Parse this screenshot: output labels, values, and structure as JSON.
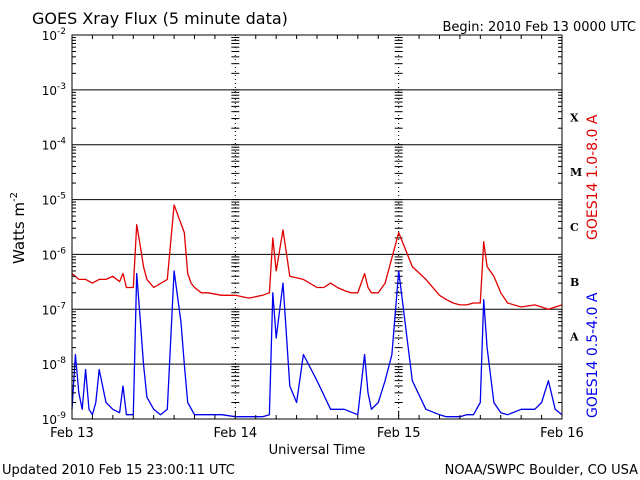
{
  "header": {
    "title": "GOES Xray Flux (5 minute data)",
    "begin": "Begin:  2010 Feb 13 0000 UTC"
  },
  "footer": {
    "updated": "Updated 2010 Feb 15 23:00:11 UTC",
    "credit": "NOAA/SWPC Boulder, CO USA"
  },
  "chart_data": {
    "type": "line",
    "title": "GOES Xray Flux (5 minute data)",
    "xlabel": "Universal Time",
    "ylabel": "Watts m",
    "ylabel_sup": "-2",
    "yscale": "log",
    "ylim": [
      1e-09,
      0.01
    ],
    "xlim": [
      "2010-02-13T00:00",
      "2010-02-16T00:00"
    ],
    "x_ticks": [
      "Feb 13",
      "Feb 14",
      "Feb 15",
      "Feb 16"
    ],
    "y_ticks": [
      {
        "base": "10",
        "exp": "-9"
      },
      {
        "base": "10",
        "exp": "-8"
      },
      {
        "base": "10",
        "exp": "-7"
      },
      {
        "base": "10",
        "exp": "-6"
      },
      {
        "base": "10",
        "exp": "-5"
      },
      {
        "base": "10",
        "exp": "-4"
      },
      {
        "base": "10",
        "exp": "-3"
      },
      {
        "base": "10",
        "exp": "-2"
      }
    ],
    "flare_classes": [
      {
        "label": "A",
        "flux": 3.16e-08
      },
      {
        "label": "B",
        "flux": 3.16e-07
      },
      {
        "label": "C",
        "flux": 3.16e-06
      },
      {
        "label": "M",
        "flux": 3.16e-05
      },
      {
        "label": "X",
        "flux": 0.000316
      }
    ],
    "grid": "horizontal at each decade, dashed verticals at day boundaries",
    "colors": {
      "long": "#e00000",
      "short": "#0000ee",
      "axis": "#000000"
    },
    "series": [
      {
        "name": "GOES14 1.0-8.0 A",
        "color": "#e00000",
        "x": [
          0,
          2,
          4,
          6,
          8,
          10,
          12,
          14,
          15,
          16,
          18,
          19,
          20,
          21,
          22,
          24,
          28,
          30,
          33,
          34,
          35,
          36,
          38,
          40,
          44,
          48,
          52,
          56,
          58,
          59,
          60,
          62,
          64,
          68,
          72,
          74,
          76,
          78,
          80,
          82,
          84,
          86,
          87,
          88,
          90,
          92,
          96,
          100,
          104,
          108,
          110,
          112,
          114,
          116,
          118,
          120,
          121,
          122,
          124,
          126,
          128,
          132,
          136,
          138,
          140,
          144
        ],
        "y": [
          4.5e-07,
          3.5e-07,
          3.5e-07,
          3e-07,
          3.5e-07,
          3.5e-07,
          4e-07,
          3.2e-07,
          4.5e-07,
          2.5e-07,
          2.5e-07,
          3.5e-06,
          1.5e-06,
          6e-07,
          3.5e-07,
          2.5e-07,
          3.5e-07,
          8e-06,
          2.5e-06,
          4.5e-07,
          3e-07,
          2.5e-07,
          2e-07,
          2e-07,
          1.8e-07,
          1.8e-07,
          1.6e-07,
          1.8e-07,
          2e-07,
          2e-06,
          5e-07,
          2.8e-06,
          4e-07,
          3.5e-07,
          2.5e-07,
          2.5e-07,
          3e-07,
          2.5e-07,
          2.2e-07,
          2e-07,
          2e-07,
          4.5e-07,
          2.5e-07,
          2e-07,
          2e-07,
          3e-07,
          2.5e-06,
          6e-07,
          3.5e-07,
          1.8e-07,
          1.5e-07,
          1.3e-07,
          1.2e-07,
          1.2e-07,
          1.3e-07,
          1.3e-07,
          1.7e-06,
          6e-07,
          4e-07,
          2e-07,
          1.3e-07,
          1.1e-07,
          1.2e-07,
          1.1e-07,
          1e-07,
          1.2e-07
        ]
      },
      {
        "name": "GOES14 0.5-4.0 A",
        "color": "#0000ee",
        "x": [
          0,
          1,
          2,
          3,
          4,
          5,
          6,
          7,
          8,
          10,
          12,
          14,
          15,
          16,
          18,
          19,
          20,
          21,
          22,
          24,
          26,
          28,
          30,
          32,
          33,
          34,
          36,
          38,
          40,
          44,
          48,
          52,
          56,
          58,
          59,
          60,
          62,
          64,
          66,
          68,
          72,
          76,
          80,
          84,
          86,
          87,
          88,
          90,
          92,
          94,
          96,
          98,
          100,
          104,
          108,
          110,
          112,
          114,
          116,
          118,
          120,
          121,
          122,
          124,
          126,
          128,
          132,
          136,
          138,
          140,
          142,
          144
        ],
        "y": [
          1.5e-09,
          1.5e-08,
          3e-09,
          1.5e-09,
          8e-09,
          1.5e-09,
          1.2e-09,
          2e-09,
          8e-09,
          2e-09,
          1.5e-09,
          1.3e-09,
          4e-09,
          1.2e-09,
          1.2e-09,
          4.5e-07,
          7e-08,
          1e-08,
          2.5e-09,
          1.5e-09,
          1.2e-09,
          1.5e-09,
          5e-07,
          6e-08,
          1e-08,
          2e-09,
          1.2e-09,
          1.2e-09,
          1.2e-09,
          1.2e-09,
          1.1e-09,
          1.1e-09,
          1.1e-09,
          1.2e-09,
          2e-07,
          3e-08,
          3e-07,
          4e-09,
          2e-09,
          1.5e-08,
          5e-09,
          1.5e-09,
          1.5e-09,
          1.2e-09,
          1.5e-08,
          3e-09,
          1.5e-09,
          2e-09,
          5e-09,
          1.5e-08,
          5e-07,
          5e-08,
          5e-09,
          1.5e-09,
          1.2e-09,
          1.1e-09,
          1.1e-09,
          1.1e-09,
          1.2e-09,
          1.2e-09,
          2e-09,
          1.5e-07,
          2e-08,
          2e-09,
          1.3e-09,
          1.2e-09,
          1.5e-09,
          1.5e-09,
          2e-09,
          5e-09,
          1.5e-09,
          1.2e-09
        ]
      }
    ]
  }
}
